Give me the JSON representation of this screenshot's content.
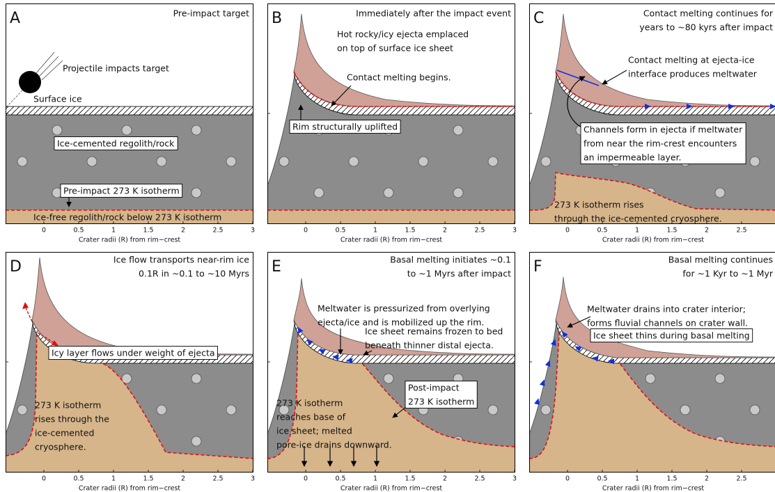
{
  "panels": [
    {
      "letter": "A",
      "title": [
        "Pre-impact target"
      ],
      "labels": [
        [
          "Projectile impacts target"
        ],
        [
          "Surface ice"
        ],
        [
          "Ice-cemented regolith/rock"
        ],
        [
          "Pre-impact 273 K isotherm"
        ],
        [
          "Ice-free regolith/rock below 273 K isotherm"
        ]
      ],
      "xticks": [
        "0",
        "0.5",
        "1",
        "1.5",
        "2",
        "2.5",
        "3"
      ],
      "xlabel": "Crater radii (R) from rim−crest"
    },
    {
      "letter": "B",
      "title": [
        "Immediately after the impact event"
      ],
      "labels": [
        [
          "Hot rocky/icy ejecta emplaced",
          "on top of surface ice sheet"
        ],
        [
          "Contact melting begins."
        ],
        [
          "Rim structurally uplifted"
        ]
      ],
      "xticks": [
        "0",
        "0.5",
        "1",
        "1.5",
        "2",
        "2.5",
        "3"
      ],
      "xlabel": "Crater radii (R) from rim−crest"
    },
    {
      "letter": "C",
      "title": [
        "Contact melting continues for",
        "years to ~80 kyrs after impact"
      ],
      "labels": [
        [
          "Contact melting at ejecta-ice",
          "interface produces meltwater"
        ],
        [
          "Channels form in ejecta if meltwater",
          "from near the rim-crest encounters",
          "an impermeable layer."
        ],
        [
          "273 K isotherm rises",
          "through the ice-cemented cryosphere."
        ]
      ],
      "xticks": [
        "0",
        "0.5",
        "1",
        "1.5",
        "2",
        "2.5"
      ],
      "xlabel": "Crater radii (R) from rim−crest"
    },
    {
      "letter": "D",
      "title": [
        "Ice flow transports near-rim ice",
        "0.1R in ~0.1 to ~10 Myrs"
      ],
      "labels": [
        [
          "Icy layer flows under weight of ejecta"
        ],
        [
          "273 K isotherm",
          "rises through the",
          "ice-cemented",
          "cryosphere."
        ]
      ],
      "xticks": [
        "0",
        "0.5",
        "1",
        "1.5",
        "2",
        "2.5",
        "3"
      ],
      "xlabel": "Crater radii (R) from rim−crest"
    },
    {
      "letter": "E",
      "title": [
        "Basal melting initiates ~0.1",
        "to ~1 Myrs after impact"
      ],
      "labels": [
        [
          "Meltwater is pressurized from overlying",
          "ejecta/ice and is mobilized up the rim."
        ],
        [
          "Ice sheet remains frozen to bed",
          "beneath thinner distal ejecta."
        ],
        [
          "Post-impact",
          "273 K isotherm"
        ],
        [
          "273 K isotherm",
          "reaches base of",
          "ice sheet; melted",
          "pore-ice drains downward."
        ]
      ],
      "xticks": [
        "0",
        "0.5",
        "1",
        "1.5",
        "2",
        "2.5",
        "3"
      ],
      "xlabel": "Crater radii (R) from rim−crest"
    },
    {
      "letter": "F",
      "title": [
        "Basal melting continues",
        "for ~1 Kyr to ~1 Myr"
      ],
      "labels": [
        [
          "Meltwater drains into crater interior;",
          "forms fluvial channels on crater wall."
        ],
        [
          "Ice sheet thins during basal melting"
        ]
      ],
      "xticks": [
        "0",
        "0.5",
        "1",
        "1.5",
        "2",
        "2.5"
      ],
      "xlabel": "Crater radii (R) from rim−crest"
    }
  ]
}
